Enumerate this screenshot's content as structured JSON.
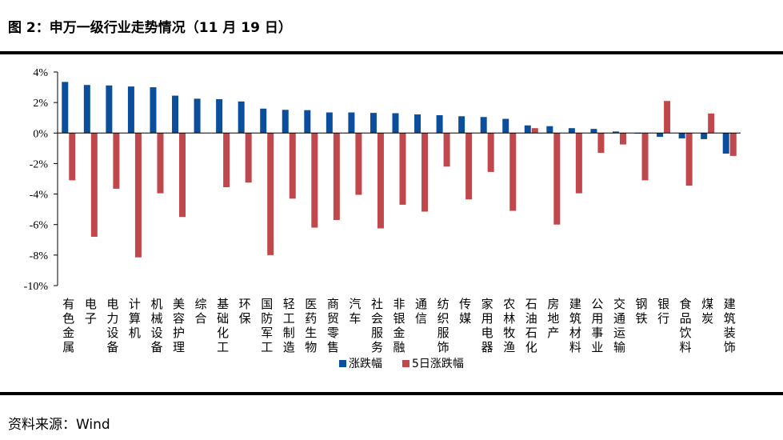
{
  "header": {
    "title": "图 2：申万一级行业走势情况（11 月 19 日）"
  },
  "footer": {
    "source": "资料来源：Wind"
  },
  "chart_data": {
    "type": "bar",
    "title": "",
    "xlabel": "",
    "ylabel": "",
    "ylim": [
      -10,
      4
    ],
    "yticks": [
      "4%",
      "2%",
      "0%",
      "-2%",
      "-4%",
      "-6%",
      "-8%",
      "-10%"
    ],
    "legend_position": "bottom",
    "categories": [
      "有色金属",
      "电子",
      "电力设备",
      "计算机",
      "机械设备",
      "美容护理",
      "综合",
      "基础化工",
      "环保",
      "国防军工",
      "轻工制造",
      "医药生物",
      "商贸零售",
      "汽车",
      "社会服务",
      "非银金融",
      "通信",
      "纺织服饰",
      "传媒",
      "家用电器",
      "农林牧渔",
      "石油石化",
      "房地产",
      "建筑材料",
      "公用事业",
      "交通运输",
      "钢铁",
      "银行",
      "食品饮料",
      "煤炭",
      "建筑装饰"
    ],
    "series": [
      {
        "name": "涨跌幅",
        "color": "#0b4f9c",
        "values": [
          3.35,
          3.15,
          3.12,
          3.05,
          3.0,
          2.45,
          2.25,
          2.22,
          2.07,
          1.6,
          1.52,
          1.5,
          1.35,
          1.35,
          1.32,
          1.3,
          1.22,
          1.17,
          1.1,
          1.05,
          0.93,
          0.5,
          0.45,
          0.32,
          0.27,
          0.1,
          -0.03,
          -0.25,
          -0.35,
          -0.4,
          -1.35
        ]
      },
      {
        "name": "5日涨跌幅",
        "color": "#c0474b",
        "values": [
          -3.1,
          -6.8,
          -3.65,
          -8.15,
          -3.95,
          -5.5,
          0.0,
          -3.55,
          -3.25,
          -8.0,
          -4.3,
          -6.2,
          -5.7,
          -4.05,
          -6.25,
          -4.7,
          -5.15,
          -2.2,
          -4.35,
          -2.55,
          -5.1,
          0.32,
          -6.0,
          -3.95,
          -1.3,
          -0.75,
          -3.1,
          2.1,
          -3.45,
          1.28,
          -1.5
        ]
      }
    ]
  }
}
